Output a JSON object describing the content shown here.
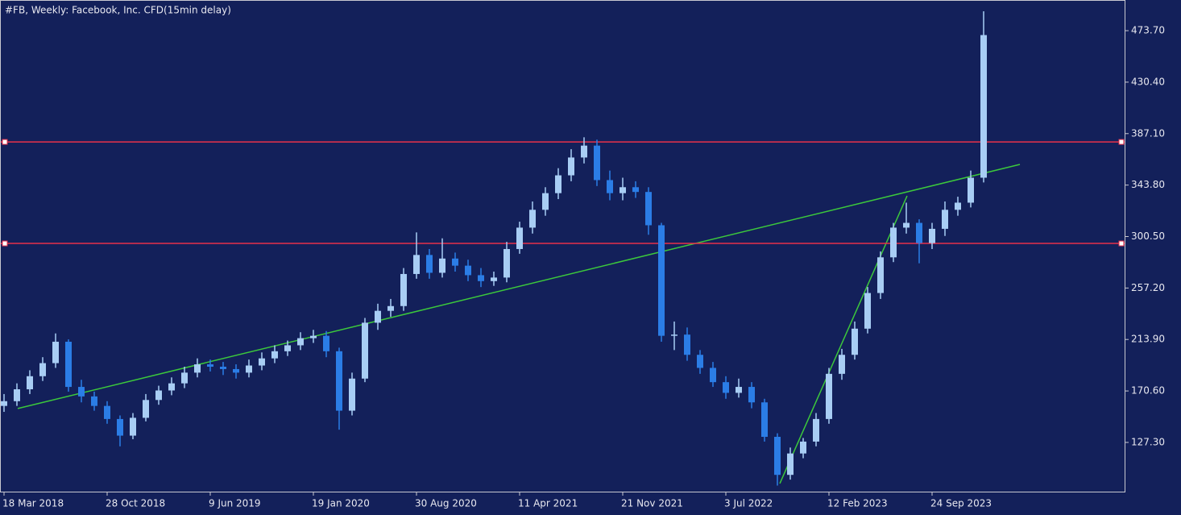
{
  "chart_data": {
    "type": "candlestick",
    "title": "#FB, Weekly:  Facebook, Inc. CFD(15min delay)",
    "up_color": "#a8cdf4",
    "down_color": "#2b7de6",
    "xlim": [
      0,
      348
    ],
    "xticks": [
      {
        "value": 0,
        "label": "18 Mar 2018"
      },
      {
        "value": 32,
        "label": "28 Oct 2018"
      },
      {
        "value": 64,
        "label": "9 Jun 2019"
      },
      {
        "value": 96,
        "label": "19 Jan 2020"
      },
      {
        "value": 128,
        "label": "30 Aug 2020"
      },
      {
        "value": 160,
        "label": "11 Apr 2021"
      },
      {
        "value": 192,
        "label": "21 Nov 2021"
      },
      {
        "value": 224,
        "label": "3 Jul 2022"
      },
      {
        "value": 256,
        "label": "12 Feb 2023"
      },
      {
        "value": 288,
        "label": "24 Sep 2023"
      }
    ],
    "ylim": [
      85.9,
      499.5
    ],
    "yticks": [
      {
        "value": 127.3,
        "label": "127.30"
      },
      {
        "value": 170.6,
        "label": "170.60"
      },
      {
        "value": 213.9,
        "label": "213.90"
      },
      {
        "value": 257.2,
        "label": "257.20"
      },
      {
        "value": 300.5,
        "label": "300.50"
      },
      {
        "value": 343.8,
        "label": "343.80"
      },
      {
        "value": 387.1,
        "label": "387.10"
      },
      {
        "value": 430.4,
        "label": "430.40"
      },
      {
        "value": 473.7,
        "label": "473.70"
      }
    ],
    "x": [
      0,
      4,
      8,
      12,
      16,
      20,
      24,
      28,
      32,
      36,
      40,
      44,
      48,
      52,
      56,
      60,
      64,
      68,
      72,
      76,
      80,
      84,
      88,
      92,
      96,
      100,
      104,
      108,
      112,
      116,
      120,
      124,
      128,
      132,
      136,
      140,
      144,
      148,
      152,
      156,
      160,
      164,
      168,
      172,
      176,
      180,
      184,
      188,
      192,
      196,
      200,
      204,
      208,
      212,
      216,
      220,
      224,
      228,
      232,
      236,
      240,
      244,
      248,
      252,
      256,
      260,
      264,
      268,
      272,
      276,
      280,
      284,
      288,
      292,
      296,
      300,
      304
    ],
    "open": [
      158,
      162,
      172,
      183,
      194,
      212,
      174,
      166,
      158,
      147,
      133,
      148,
      163,
      171,
      177,
      186,
      193,
      191,
      189,
      186,
      192,
      198,
      204,
      209,
      215,
      217,
      204,
      154,
      181,
      228,
      238,
      242,
      269,
      285,
      270,
      282,
      276,
      268,
      263,
      266,
      290,
      308,
      323,
      337,
      352,
      367,
      377,
      348,
      337,
      342,
      338,
      310,
      217,
      218,
      201,
      190,
      178,
      169,
      174,
      161,
      132,
      100,
      118,
      128,
      147,
      185,
      201,
      223,
      253,
      283,
      308,
      312,
      295,
      307,
      323,
      329,
      350
    ],
    "high": [
      168,
      177,
      188,
      199,
      219,
      214,
      180,
      170,
      162,
      150,
      152,
      168,
      175,
      182,
      191,
      198,
      197,
      195,
      193,
      197,
      203,
      209,
      213,
      220,
      222,
      221,
      207,
      186,
      232,
      244,
      248,
      274,
      304,
      290,
      299,
      287,
      281,
      274,
      271,
      296,
      313,
      330,
      342,
      358,
      374,
      384,
      382,
      356,
      350,
      347,
      342,
      312,
      229,
      224,
      205,
      195,
      183,
      181,
      178,
      164,
      135,
      123,
      131,
      152,
      190,
      206,
      229,
      258,
      288,
      312,
      329,
      315,
      312,
      330,
      334,
      356,
      490
    ],
    "low": [
      153,
      158,
      168,
      179,
      190,
      170,
      161,
      154,
      143,
      124,
      130,
      145,
      159,
      167,
      173,
      182,
      187,
      184,
      181,
      182,
      188,
      194,
      200,
      205,
      211,
      199,
      138,
      150,
      178,
      222,
      233,
      238,
      265,
      265,
      266,
      271,
      263,
      258,
      259,
      262,
      286,
      303,
      318,
      332,
      347,
      362,
      343,
      331,
      331,
      333,
      302,
      212,
      205,
      196,
      185,
      174,
      164,
      165,
      156,
      128,
      91,
      96,
      114,
      124,
      143,
      180,
      197,
      219,
      248,
      279,
      303,
      278,
      290,
      301,
      318,
      325,
      346
    ],
    "close": [
      162,
      172,
      183,
      194,
      212,
      174,
      166,
      158,
      147,
      133,
      148,
      163,
      171,
      177,
      186,
      193,
      191,
      189,
      186,
      192,
      198,
      204,
      209,
      215,
      217,
      204,
      154,
      181,
      228,
      238,
      242,
      269,
      285,
      270,
      282,
      276,
      268,
      263,
      266,
      290,
      308,
      323,
      337,
      352,
      367,
      377,
      348,
      337,
      342,
      338,
      310,
      217,
      218,
      201,
      190,
      178,
      169,
      174,
      161,
      132,
      100,
      118,
      128,
      147,
      185,
      201,
      223,
      253,
      283,
      308,
      312,
      295,
      307,
      323,
      329,
      350,
      470
    ],
    "hlines": [
      {
        "value": 380.1,
        "color": "#e8304a"
      },
      {
        "value": 294.7,
        "color": "#e8304a"
      }
    ],
    "trendlines": [
      {
        "x": [
          4.25,
          315.25
        ],
        "y": [
          155.8,
          361.2
        ],
        "color": "#3cc83c"
      },
      {
        "x": [
          240.75,
          280.25
        ],
        "y": [
          92.7,
          334.7
        ],
        "color": "#3cc83c"
      }
    ]
  }
}
